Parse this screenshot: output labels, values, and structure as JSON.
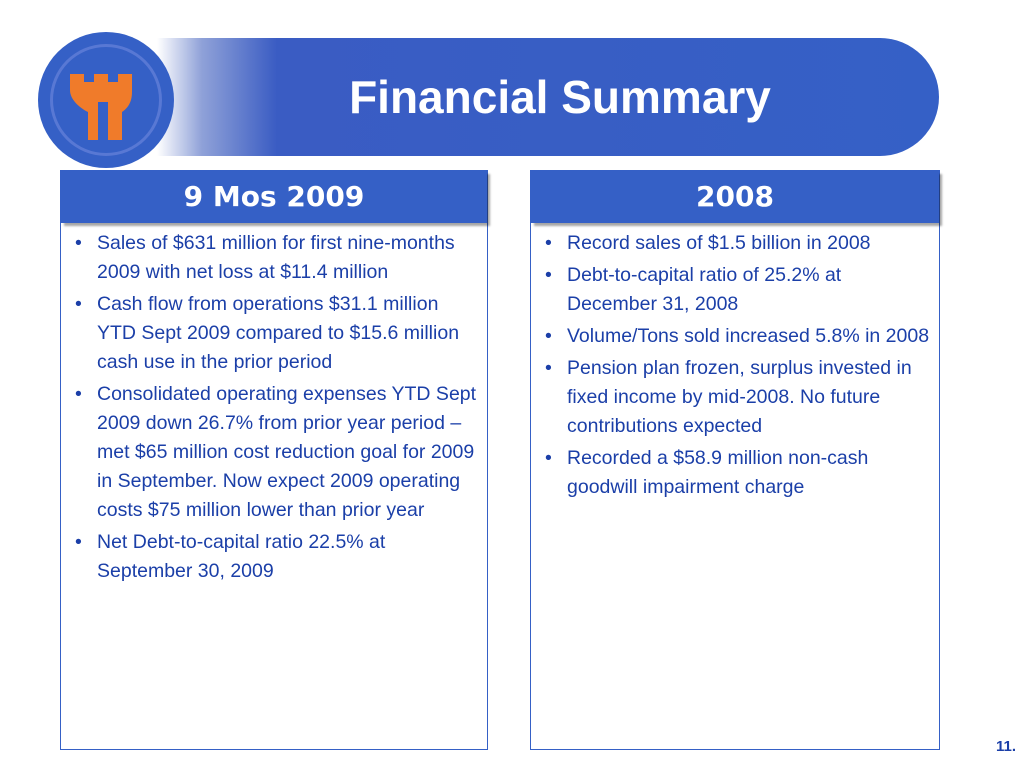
{
  "header": {
    "title": "Financial Summary",
    "logo": "castle-tower-logo"
  },
  "colors": {
    "brand_blue": "#3560c6",
    "text_blue": "#1b3fa8",
    "logo_orange": "#f07b2a"
  },
  "left_panel": {
    "heading": "9 Mos 2009",
    "bullets": [
      "Sales of $631 million for first nine-months 2009 with net loss at $11.4 million",
      "Cash flow from operations $31.1 million YTD Sept 2009 compared to $15.6 million cash use in the prior period",
      "Consolidated operating expenses YTD Sept 2009 down 26.7% from prior year period – met $65 million cost reduction goal for 2009 in September. Now expect 2009 operating costs $75 million lower than prior year",
      "Net Debt-to-capital ratio 22.5% at September 30, 2009"
    ]
  },
  "right_panel": {
    "heading": "2008",
    "bullets": [
      "Record sales of $1.5 billion in 2008",
      "Debt-to-capital ratio of 25.2% at December 31, 2008",
      "Volume/Tons sold increased 5.8% in 2008",
      "Pension plan frozen, surplus invested in fixed income by mid-2008.  No future contributions expected",
      "Recorded a $58.9 million non-cash goodwill impairment charge"
    ]
  },
  "footer": {
    "page_number": "11."
  }
}
